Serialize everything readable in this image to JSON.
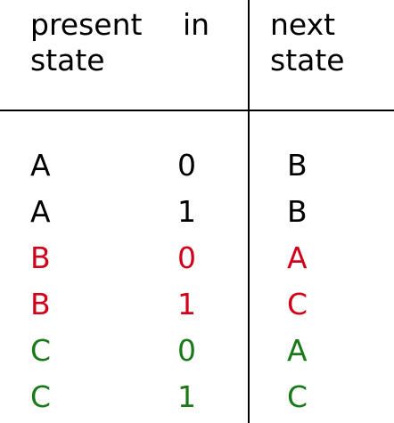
{
  "headers": {
    "present_state": "present\nstate",
    "in": "in",
    "next_state": "next\nstate"
  },
  "rows": [
    {
      "present": "A",
      "in": "0",
      "next": "B",
      "color": "#000000"
    },
    {
      "present": "A",
      "in": "1",
      "next": "B",
      "color": "#000000"
    },
    {
      "present": "B",
      "in": "0",
      "next": "A",
      "color": "#d0021b"
    },
    {
      "present": "B",
      "in": "1",
      "next": "C",
      "color": "#d0021b"
    },
    {
      "present": "C",
      "in": "0",
      "next": "A",
      "color": "#1a7a1a"
    },
    {
      "present": "C",
      "in": "1",
      "next": "C",
      "color": "#1a7a1a"
    }
  ]
}
